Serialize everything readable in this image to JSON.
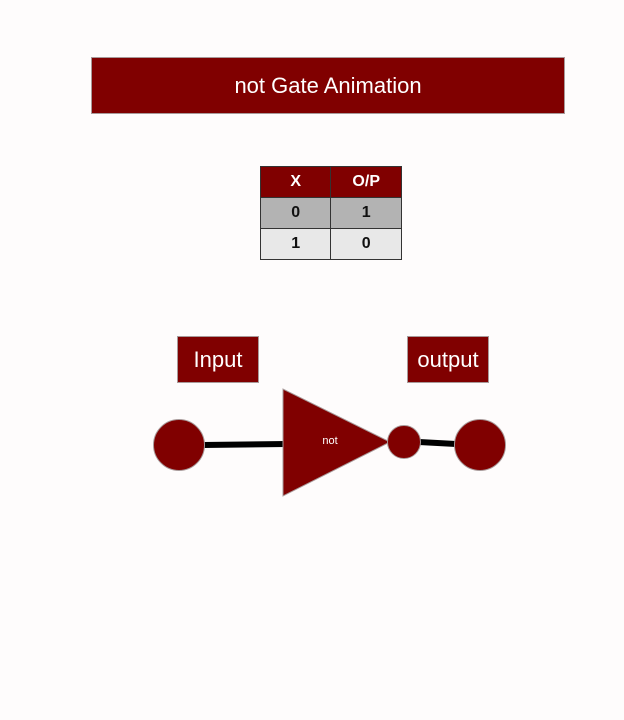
{
  "title": "not Gate Animation",
  "truth_table": {
    "headers": [
      "X",
      "O/P"
    ],
    "rows": [
      [
        "0",
        "1"
      ],
      [
        "1",
        "0"
      ]
    ]
  },
  "labels": {
    "input": "Input",
    "output": "output",
    "gate": "not"
  },
  "colors": {
    "accent": "#800000",
    "wire": "#000000"
  }
}
